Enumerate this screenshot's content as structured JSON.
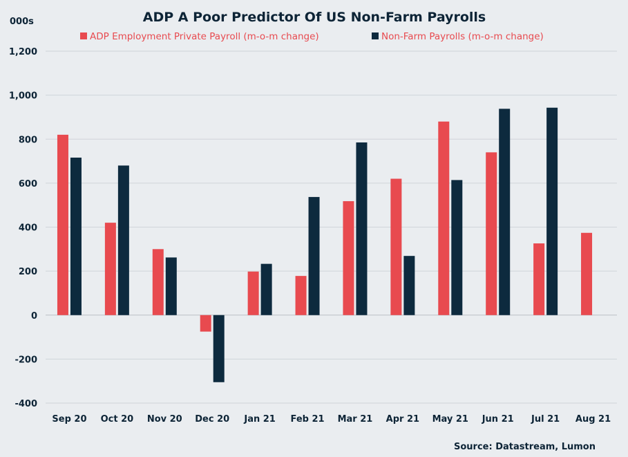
{
  "chart_data": {
    "type": "bar",
    "title": "ADP A Poor Predictor Of US Non-Farm Payrolls",
    "unit_label": "000s",
    "categories": [
      "Sep 20",
      "Oct 20",
      "Nov 20",
      "Dec 20",
      "Jan 21",
      "Feb 21",
      "Mar 21",
      "Apr 21",
      "May 21",
      "Jun 21",
      "Jul 21",
      "Aug 21"
    ],
    "series": [
      {
        "name": "ADP Employment Private Payroll (m-o-m change)",
        "color": "#e84a4f",
        "values": [
          820,
          420,
          300,
          -75,
          198,
          178,
          518,
          620,
          880,
          740,
          326,
          374
        ]
      },
      {
        "name": "Non-Farm Payrolls (m-o-m change)",
        "color": "#0d2a3e",
        "values": [
          716,
          680,
          262,
          -305,
          233,
          537,
          785,
          269,
          614,
          938,
          943,
          null
        ]
      }
    ],
    "ylim": [
      -400,
      1200
    ],
    "yticks": [
      -400,
      -200,
      0,
      200,
      400,
      600,
      800,
      1000,
      1200
    ],
    "ytick_labels": [
      "-400",
      "-200",
      "0",
      "200",
      "400",
      "600",
      "800",
      "1,000",
      "1,200"
    ],
    "grid": true,
    "legend_position": "top-center",
    "source": "Source: Datastream, Lumon"
  }
}
